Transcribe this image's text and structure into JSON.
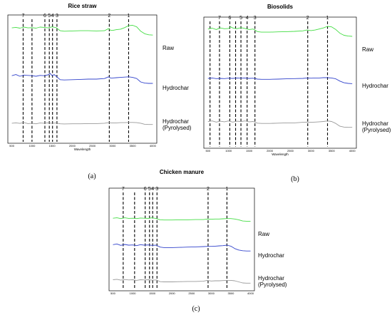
{
  "chart_data": [
    {
      "type": "line",
      "panel_label": "(a)",
      "title": "Rice straw",
      "xlabel": "Wavelength",
      "ylabel": "",
      "xlim": [
        400,
        4100
      ],
      "x_ticks": [
        500,
        1000,
        1500,
        2000,
        2500,
        3000,
        3500,
        4000
      ],
      "x_tick_labels": [
        "500",
        "1000",
        "1500",
        "2000",
        "2500",
        "3000",
        "3500",
        "4000"
      ],
      "peaks": [
        {
          "label": "1",
          "x": 3400
        },
        {
          "label": "2",
          "x": 2920
        },
        {
          "label": "3",
          "x": 1620
        },
        {
          "label": "4",
          "x": 1510
        },
        {
          "label": "5",
          "x": 1430
        },
        {
          "label": "6",
          "x": 1320
        },
        {
          "label": "7",
          "x": 780
        }
      ],
      "extra_lines": [
        1000
      ],
      "series": [
        {
          "name": "Raw",
          "color": "#44dd44",
          "x": [
            500,
            600,
            700,
            800,
            900,
            1000,
            1100,
            1200,
            1300,
            1400,
            1500,
            1600,
            1700,
            1800,
            2000,
            2200,
            2400,
            2600,
            2800,
            2900,
            2950,
            3000,
            3100,
            3200,
            3300,
            3400,
            3500,
            3600,
            3700,
            3800,
            3900,
            4000
          ],
          "values": [
            0.83,
            0.85,
            0.82,
            0.86,
            0.83,
            0.84,
            0.82,
            0.86,
            0.85,
            0.83,
            0.87,
            0.84,
            0.72,
            0.7,
            0.71,
            0.72,
            0.72,
            0.71,
            0.72,
            0.8,
            0.74,
            0.73,
            0.76,
            0.78,
            0.84,
            0.92,
            0.93,
            0.87,
            0.7,
            0.6,
            0.56,
            0.55
          ]
        },
        {
          "name": "Hydrochar",
          "color": "#3344cc",
          "x": [
            500,
            600,
            700,
            800,
            900,
            1000,
            1100,
            1200,
            1300,
            1400,
            1450,
            1500,
            1550,
            1600,
            1700,
            1800,
            2000,
            2200,
            2400,
            2600,
            2800,
            2900,
            2950,
            3000,
            3100,
            3200,
            3300,
            3400,
            3500,
            3600,
            3700,
            3800,
            3900,
            4000
          ],
          "values": [
            0.52,
            0.56,
            0.5,
            0.54,
            0.53,
            0.52,
            0.5,
            0.53,
            0.52,
            0.55,
            0.6,
            0.52,
            0.56,
            0.5,
            0.38,
            0.37,
            0.38,
            0.39,
            0.4,
            0.4,
            0.42,
            0.48,
            0.44,
            0.44,
            0.45,
            0.46,
            0.47,
            0.48,
            0.46,
            0.42,
            0.3,
            0.26,
            0.25,
            0.25
          ]
        },
        {
          "name": "Hydrochar (Pyrolysed)",
          "color": "#999999",
          "x": [
            500,
            600,
            700,
            800,
            900,
            1000,
            1100,
            1200,
            1300,
            1400,
            1500,
            1600,
            1700,
            1800,
            2000,
            2200,
            2400,
            2600,
            2800,
            2900,
            3000,
            3100,
            3200,
            3300,
            3400,
            3500,
            3600,
            3700,
            3800,
            3900,
            4000
          ],
          "values": [
            0.12,
            0.14,
            0.11,
            0.15,
            0.1,
            0.12,
            0.09,
            0.13,
            0.12,
            0.14,
            0.11,
            0.13,
            0.09,
            0.08,
            0.09,
            0.09,
            0.1,
            0.1,
            0.12,
            0.15,
            0.13,
            0.14,
            0.15,
            0.15,
            0.16,
            0.16,
            0.15,
            0.12,
            0.06,
            0.05,
            0.05
          ]
        }
      ]
    },
    {
      "type": "line",
      "panel_label": "(b)",
      "title": "Biosolids",
      "xlabel": "Wavelength",
      "ylabel": "",
      "xlim": [
        400,
        4100
      ],
      "x_ticks": [
        500,
        1000,
        1500,
        2000,
        2500,
        3000,
        3500,
        4000
      ],
      "x_tick_labels": [
        "500",
        "1000",
        "1500",
        "2000",
        "2500",
        "3000",
        "3500",
        "4000"
      ],
      "peaks": [
        {
          "label": "1",
          "x": 3400
        },
        {
          "label": "2",
          "x": 2920
        },
        {
          "label": "3",
          "x": 1640
        },
        {
          "label": "4",
          "x": 1450
        },
        {
          "label": "5",
          "x": 1300
        },
        {
          "label": "6",
          "x": 1030
        },
        {
          "label": "7",
          "x": 780
        }
      ],
      "extra_lines": [
        550,
        1170
      ],
      "series": [
        {
          "name": "Raw",
          "color": "#44dd44",
          "x": [
            500,
            600,
            700,
            800,
            900,
            1000,
            1050,
            1100,
            1200,
            1300,
            1400,
            1500,
            1600,
            1700,
            1800,
            2000,
            2200,
            2400,
            2600,
            2800,
            2900,
            3000,
            3100,
            3200,
            3300,
            3400,
            3500,
            3600,
            3700,
            3800,
            3900,
            4000
          ],
          "values": [
            0.82,
            0.85,
            0.8,
            0.86,
            0.83,
            0.84,
            0.9,
            0.86,
            0.83,
            0.87,
            0.84,
            0.8,
            0.82,
            0.72,
            0.7,
            0.7,
            0.71,
            0.72,
            0.73,
            0.75,
            0.78,
            0.76,
            0.78,
            0.82,
            0.86,
            0.92,
            0.9,
            0.8,
            0.66,
            0.58,
            0.55,
            0.54
          ]
        },
        {
          "name": "Hydrochar",
          "color": "#3344cc",
          "x": [
            500,
            600,
            700,
            800,
            900,
            1000,
            1100,
            1200,
            1300,
            1400,
            1500,
            1600,
            1700,
            1800,
            2000,
            2200,
            2400,
            2600,
            2800,
            2900,
            3000,
            3100,
            3200,
            3300,
            3400,
            3500,
            3600,
            3700,
            3800,
            3900,
            4000
          ],
          "values": [
            0.5,
            0.52,
            0.49,
            0.5,
            0.49,
            0.51,
            0.5,
            0.52,
            0.51,
            0.52,
            0.5,
            0.51,
            0.47,
            0.46,
            0.46,
            0.47,
            0.48,
            0.49,
            0.5,
            0.52,
            0.51,
            0.52,
            0.52,
            0.53,
            0.53,
            0.52,
            0.48,
            0.38,
            0.31,
            0.28,
            0.27
          ]
        },
        {
          "name": "Hydrochar (Pyrolysed)",
          "color": "#999999",
          "x": [
            500,
            600,
            700,
            800,
            900,
            1000,
            1100,
            1200,
            1300,
            1400,
            1500,
            1600,
            1700,
            1800,
            2000,
            2200,
            2400,
            2600,
            2800,
            2900,
            3000,
            3100,
            3200,
            3300,
            3400,
            3500,
            3600,
            3700,
            3800,
            3900,
            4000
          ],
          "values": [
            0.27,
            0.29,
            0.25,
            0.28,
            0.26,
            0.29,
            0.25,
            0.28,
            0.27,
            0.29,
            0.26,
            0.27,
            0.21,
            0.2,
            0.2,
            0.21,
            0.22,
            0.22,
            0.24,
            0.25,
            0.24,
            0.25,
            0.26,
            0.27,
            0.29,
            0.27,
            0.2,
            0.1,
            0.07,
            0.06,
            0.06
          ]
        }
      ]
    },
    {
      "type": "line",
      "panel_label": "(c)",
      "title": "Chicken manure",
      "xlabel": "",
      "ylabel": "",
      "xlim": [
        400,
        4100
      ],
      "x_ticks": [
        500,
        1000,
        1500,
        2000,
        2500,
        3000,
        3500,
        4000
      ],
      "x_tick_labels": [
        "500",
        "1000",
        "1500",
        "2000",
        "2500",
        "3000",
        "3500",
        "4000"
      ],
      "peaks": [
        {
          "label": "1",
          "x": 3400
        },
        {
          "label": "2",
          "x": 2920
        },
        {
          "label": "3",
          "x": 1620
        },
        {
          "label": "4",
          "x": 1510
        },
        {
          "label": "5",
          "x": 1430
        },
        {
          "label": "6",
          "x": 1320
        },
        {
          "label": "7",
          "x": 760
        }
      ],
      "extra_lines": [
        1050
      ],
      "series": [
        {
          "name": "Raw",
          "color": "#44dd44",
          "x": [
            500,
            600,
            700,
            800,
            900,
            1000,
            1100,
            1200,
            1300,
            1400,
            1500,
            1600,
            1700,
            1800,
            2000,
            2200,
            2400,
            2600,
            2800,
            2900,
            3000,
            3100,
            3200,
            3300,
            3400,
            3500,
            3600,
            3700,
            3800,
            3900,
            4000
          ],
          "values": [
            0.78,
            0.8,
            0.76,
            0.8,
            0.77,
            0.78,
            0.76,
            0.79,
            0.78,
            0.77,
            0.8,
            0.76,
            0.7,
            0.69,
            0.69,
            0.7,
            0.7,
            0.71,
            0.71,
            0.74,
            0.73,
            0.74,
            0.74,
            0.75,
            0.76,
            0.76,
            0.74,
            0.7,
            0.64,
            0.63,
            0.63
          ]
        },
        {
          "name": "Hydrochar",
          "color": "#3344cc",
          "x": [
            500,
            600,
            700,
            800,
            900,
            1000,
            1100,
            1200,
            1300,
            1400,
            1500,
            1600,
            1700,
            1800,
            2000,
            2200,
            2400,
            2600,
            2800,
            2900,
            3000,
            3100,
            3200,
            3300,
            3400,
            3500,
            3600,
            3700,
            3800,
            3900,
            4000
          ],
          "values": [
            0.52,
            0.55,
            0.49,
            0.53,
            0.5,
            0.51,
            0.48,
            0.52,
            0.5,
            0.51,
            0.49,
            0.5,
            0.42,
            0.4,
            0.4,
            0.41,
            0.42,
            0.43,
            0.44,
            0.45,
            0.45,
            0.46,
            0.47,
            0.48,
            0.5,
            0.46,
            0.36,
            0.3,
            0.27,
            0.26,
            0.26
          ]
        },
        {
          "name": "Hydrochar (Pyrolysed)",
          "color": "#999999",
          "x": [
            500,
            600,
            700,
            800,
            900,
            1000,
            1100,
            1200,
            1300,
            1400,
            1500,
            1600,
            1700,
            1800,
            2000,
            2200,
            2400,
            2600,
            2800,
            2900,
            3000,
            3100,
            3200,
            3300,
            3400,
            3500,
            3600,
            3700,
            3800,
            3900,
            4000
          ],
          "values": [
            0.25,
            0.27,
            0.23,
            0.26,
            0.24,
            0.25,
            0.22,
            0.25,
            0.24,
            0.25,
            0.23,
            0.24,
            0.16,
            0.15,
            0.15,
            0.16,
            0.17,
            0.17,
            0.18,
            0.22,
            0.19,
            0.2,
            0.2,
            0.21,
            0.22,
            0.22,
            0.2,
            0.15,
            0.1,
            0.09,
            0.09
          ]
        }
      ]
    }
  ]
}
